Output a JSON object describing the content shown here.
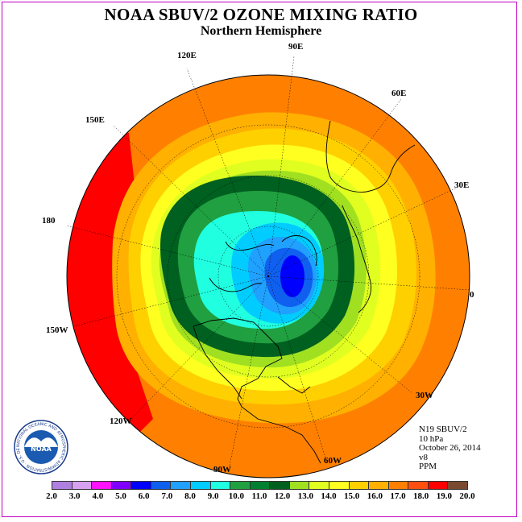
{
  "title": "NOAA SBUV/2 OZONE MIXING RATIO",
  "subtitle": "Northern Hemisphere",
  "longitude_labels": [
    "90E",
    "60E",
    "30E",
    "0",
    "30W",
    "60W",
    "90W",
    "120W",
    "150W",
    "180",
    "150E",
    "120E"
  ],
  "info_block": [
    "N19 SBUV/2",
    "10 hPa",
    "October 26, 2014",
    "v8",
    "PPM"
  ],
  "colorbar": {
    "ticks": [
      "2.0",
      "3.0",
      "4.0",
      "5.0",
      "6.0",
      "7.0",
      "8.0",
      "9.0",
      "10.0",
      "11.0",
      "12.0",
      "13.0",
      "14.0",
      "15.0",
      "16.0",
      "17.0",
      "18.0",
      "19.0",
      "20.0"
    ],
    "colors": [
      "#b080e0",
      "#d8a0f0",
      "#ff10ff",
      "#8000ff",
      "#0000ff",
      "#1060f0",
      "#20a0ff",
      "#00ccff",
      "#20ffe0",
      "#20a040",
      "#008030",
      "#006020",
      "#a0e020",
      "#e0ff20",
      "#ffff20",
      "#ffd000",
      "#ffb000",
      "#ff8000",
      "#ff5010",
      "#ff0000",
      "#7a4a30"
    ]
  },
  "logo": {
    "text": "NOAA",
    "ring_text": "NATIONAL OCEANIC AND ATMOSPHERIC ADMINISTRATION · U.S. DEPARTMENT OF COMMERCE"
  },
  "colors": {
    "frame": "#c000c0",
    "outer_band": "#ff8000",
    "max_band": "#ff0000"
  }
}
